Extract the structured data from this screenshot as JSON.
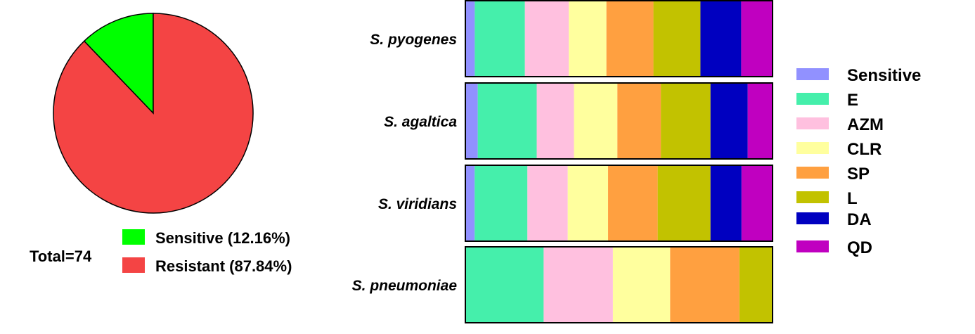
{
  "chart_data": [
    {
      "type": "pie",
      "total_label": "Total=74",
      "slices": [
        {
          "name": "Sensitive",
          "label": "Sensitive (12.16%)",
          "value": 12.16,
          "color": "#00ff00"
        },
        {
          "name": "Resistant",
          "label": "Resistant (87.84%)",
          "value": 87.84,
          "color": "#f44444"
        }
      ]
    },
    {
      "type": "bar",
      "orientation": "horizontal",
      "stacked": true,
      "normalized": true,
      "categories": [
        "S. pyogenes",
        "S. agaltica",
        "S. viridians",
        "S. pneumoniae"
      ],
      "series": [
        {
          "name": "Sensitive",
          "color": "#9191ff",
          "values": [
            3,
            4,
            3,
            0
          ]
        },
        {
          "name": "E",
          "color": "#45efab",
          "values": [
            16,
            19,
            17,
            26
          ]
        },
        {
          "name": "AZM",
          "color": "#ffc0df",
          "values": [
            14,
            12,
            13,
            23
          ]
        },
        {
          "name": "CLR",
          "color": "#ffff9e",
          "values": [
            12,
            14,
            13,
            19
          ]
        },
        {
          "name": "SP",
          "color": "#ffa040",
          "values": [
            15,
            14,
            16,
            23
          ]
        },
        {
          "name": "L",
          "color": "#c2c200",
          "values": [
            15,
            16,
            17,
            11
          ]
        },
        {
          "name": "DA",
          "color": "#0000c0",
          "values": [
            13,
            12,
            10,
            0
          ]
        },
        {
          "name": "QD",
          "color": "#c000c0",
          "values": [
            10,
            8,
            10,
            0
          ]
        }
      ]
    }
  ]
}
